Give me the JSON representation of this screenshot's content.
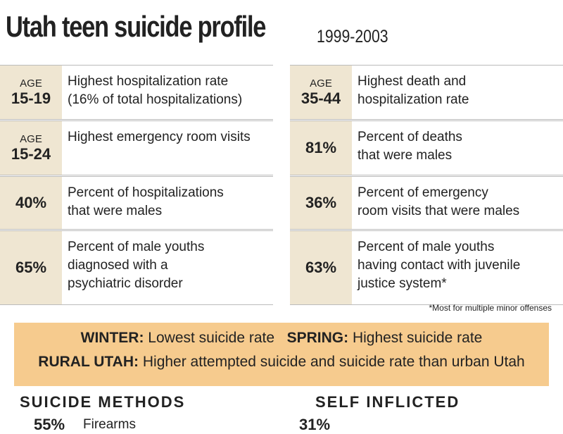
{
  "header": {
    "title": "Utah teen suicide profile",
    "years": "1999-2003"
  },
  "left_rows": [
    {
      "tag": "AGE",
      "value": "15-19",
      "lines": [
        "Highest hospitalization rate",
        "(16% of total hospitalizations)"
      ]
    },
    {
      "tag": "AGE",
      "value": "15-24",
      "lines": [
        "Highest emergency room visits"
      ]
    },
    {
      "value": "40%",
      "lines": [
        "Percent of hospitalizations",
        "that were males"
      ]
    },
    {
      "value": "65%",
      "lines": [
        "Percent of male youths",
        "diagnosed with a",
        "psychiatric disorder"
      ]
    }
  ],
  "right_rows": [
    {
      "tag": "AGE",
      "value": "35-44",
      "lines": [
        "Highest death and",
        "hospitalization rate"
      ]
    },
    {
      "value": "81%",
      "lines": [
        "Percent of deaths",
        "that were males"
      ]
    },
    {
      "value": "36%",
      "lines": [
        "Percent of emergency",
        "room visits that were males"
      ]
    },
    {
      "value": "63%",
      "lines": [
        "Percent of male youths",
        "having contact with juvenile",
        "justice system*"
      ]
    }
  ],
  "footnote": "*Most for multiple minor offenses",
  "seasons": {
    "winter_label": "WINTER:",
    "winter_text": "Lowest suicide rate",
    "spring_label": "SPRING:",
    "spring_text": "Highest suicide rate",
    "rural_label": "RURAL UTAH:",
    "rural_text": "Higher attempted suicide and suicide rate than urban Utah"
  },
  "methods": {
    "title": "SUICIDE METHODS",
    "first_value": "55%",
    "first_label": "Firearms"
  },
  "self_inflicted": {
    "title": "SELF INFLICTED",
    "first_value": "31%"
  }
}
